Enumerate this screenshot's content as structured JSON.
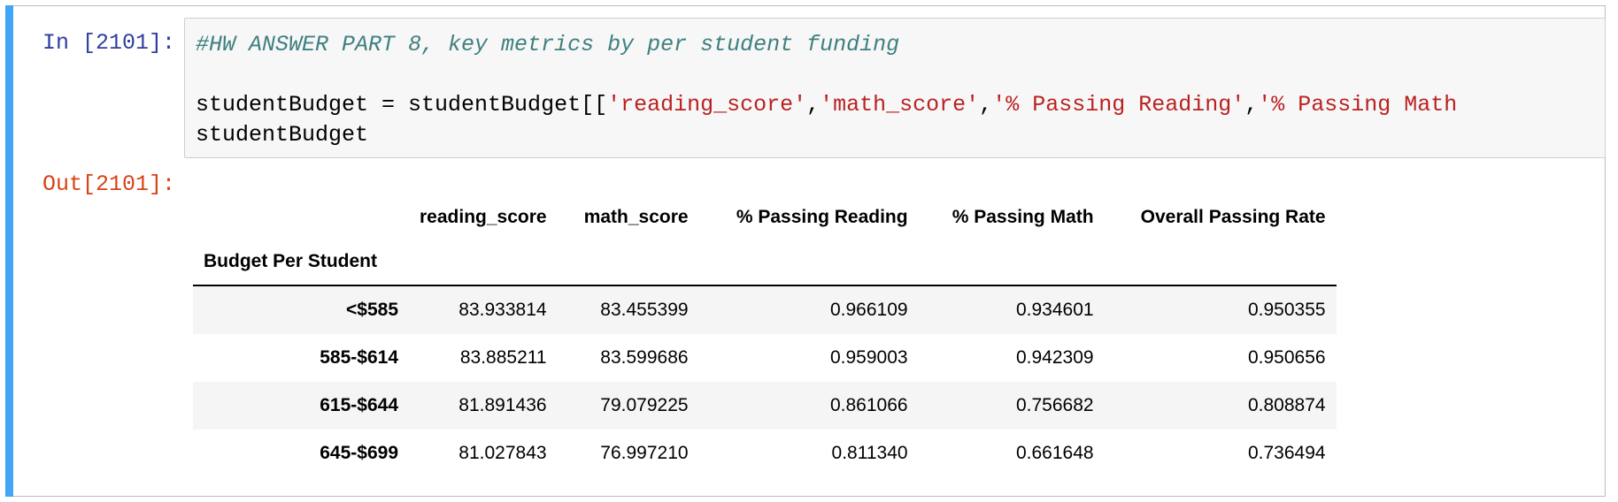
{
  "cell": {
    "in_prompt": "In [2101]:",
    "out_prompt": "Out[2101]:",
    "code": {
      "comment": "#HW ANSWER PART 8, key metrics by per student funding",
      "line2_prefix": "studentBudget = studentBudget[[",
      "line2_strings": [
        "'reading_score'",
        "'math_score'",
        "'% Passing Reading'",
        "'% Passing Math"
      ],
      "line3": "studentBudget"
    }
  },
  "table": {
    "columns": [
      "reading_score",
      "math_score",
      "% Passing Reading",
      "% Passing Math",
      "Overall Passing Rate"
    ],
    "index_name": "Budget Per Student",
    "rows": [
      {
        "index": "<$585",
        "values": [
          "83.933814",
          "83.455399",
          "0.966109",
          "0.934601",
          "0.950355"
        ]
      },
      {
        "index": "585-$614",
        "values": [
          "83.885211",
          "83.599686",
          "0.959003",
          "0.942309",
          "0.950656"
        ]
      },
      {
        "index": "615-$644",
        "values": [
          "81.891436",
          "79.079225",
          "0.861066",
          "0.756682",
          "0.808874"
        ]
      },
      {
        "index": "645-$699",
        "values": [
          "81.027843",
          "76.997210",
          "0.811340",
          "0.661648",
          "0.736494"
        ]
      }
    ]
  },
  "colors": {
    "cell_bar": "#42a5f5",
    "in_prompt": "#303f9f",
    "out_prompt": "#d84315",
    "comment": "#408080",
    "string": "#ba2121"
  }
}
